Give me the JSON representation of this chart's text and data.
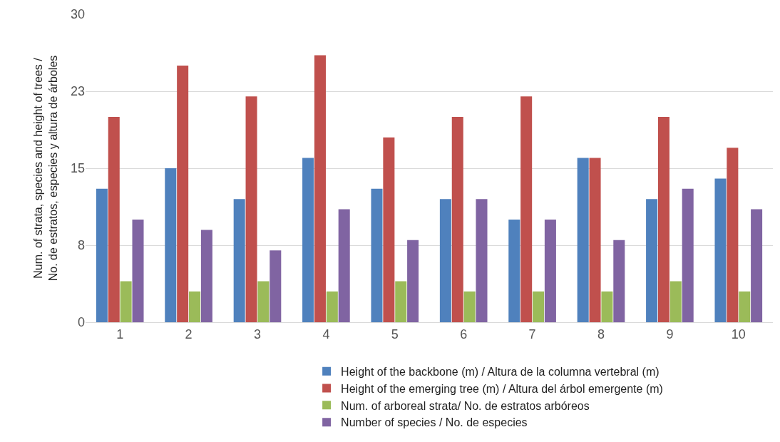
{
  "chart_data": {
    "type": "bar",
    "ylabel": "Num. of strata, species and height of trees /\nNo. de estratos, especies y altura de árboles",
    "categories": [
      "1",
      "2",
      "3",
      "4",
      "5",
      "6",
      "7",
      "8",
      "9",
      "10"
    ],
    "series": [
      {
        "name": "Height of the backbone (m) / Altura de la columna vertebral (m)",
        "color": "#4f81bd",
        "values": [
          13,
          15,
          12,
          16,
          13,
          12,
          10,
          16,
          12,
          14
        ]
      },
      {
        "name": "Height of the emerging tree (m) / Altura del árbol emergente (m)",
        "color": "#c0504d",
        "values": [
          20,
          25,
          22,
          26,
          18,
          20,
          22,
          16,
          20,
          17
        ]
      },
      {
        "name": "Num. of arboreal strata/ No. de estratos arbóreos",
        "color": "#9bbb59",
        "values": [
          4,
          3,
          4,
          3,
          4,
          3,
          3,
          3,
          4,
          3
        ]
      },
      {
        "name": "Number of species / No. de especies",
        "color": "#8064a2",
        "values": [
          10,
          9,
          7,
          11,
          8,
          12,
          10,
          8,
          13,
          11
        ]
      }
    ],
    "ylim": [
      0,
      30
    ],
    "yticks": [
      0,
      {
        "value": 7.5,
        "label": "8"
      },
      15,
      {
        "value": 22.5,
        "label": "23"
      },
      30
    ],
    "grid": "y",
    "legend": "bottom"
  }
}
